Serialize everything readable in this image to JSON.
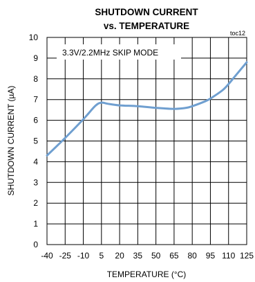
{
  "chart_data": {
    "type": "line",
    "title": "SHUTDOWN CURRENT",
    "subtitle": "vs. TEMPERATURE",
    "figure_id": "toc12",
    "annotation": "3.3V/2.2MHz SKIP MODE",
    "xlabel": "TEMPERATURE (°C)",
    "ylabel": "SHUTDOWN CURRENT (µA)",
    "xlim": [
      -40,
      125
    ],
    "ylim": [
      0,
      10
    ],
    "x_ticks": [
      -40,
      -25,
      -10,
      5,
      20,
      35,
      50,
      65,
      80,
      95,
      110,
      125
    ],
    "y_ticks": [
      0,
      1,
      2,
      3,
      4,
      5,
      6,
      7,
      8,
      9,
      10
    ],
    "grid": true,
    "line_color": "#6f9fd0",
    "series": [
      {
        "x": [
          -40,
          -25,
          -10,
          0,
          5,
          10,
          20,
          35,
          50,
          65,
          75,
          80,
          90,
          95,
          105,
          110,
          115,
          125
        ],
        "y": [
          4.3,
          5.15,
          6.05,
          6.7,
          6.85,
          6.8,
          6.72,
          6.68,
          6.6,
          6.55,
          6.6,
          6.68,
          6.9,
          7.05,
          7.45,
          7.75,
          8.1,
          8.8
        ]
      }
    ]
  }
}
